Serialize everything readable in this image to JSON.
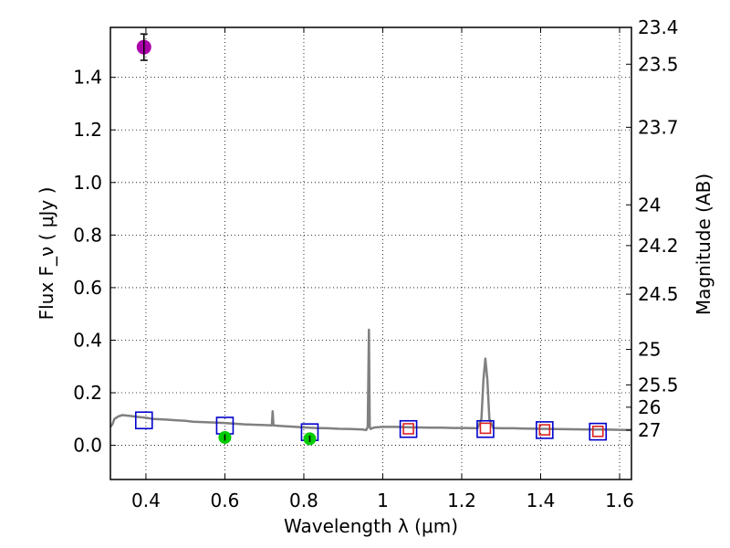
{
  "chart_data": {
    "type": "scatter",
    "xlabel": "Wavelength  λ (μm)",
    "ylabel": "Flux  F_ν  ( μJy )",
    "ylabel_right": "Magnitude (AB)",
    "xlim": [
      0.31,
      1.63
    ],
    "ylim": [
      -0.13,
      1.59
    ],
    "grid": true,
    "x_ticks": [
      0.4,
      0.6,
      0.8,
      1.0,
      1.2,
      1.4,
      1.6
    ],
    "x_tick_labels": [
      "0.4",
      "0.6",
      "0.8",
      "1",
      "1.2",
      "1.4",
      "1.6"
    ],
    "y_ticks": [
      0.0,
      0.2,
      0.4,
      0.6,
      0.8,
      1.0,
      1.2,
      1.4
    ],
    "y_tick_labels": [
      "0.0",
      "0.2",
      "0.4",
      "0.6",
      "0.8",
      "1.0",
      "1.2",
      "1.4"
    ],
    "right_ticks": [
      {
        "label": "23.4",
        "flux": 1.59
      },
      {
        "label": "23.5",
        "flux": 1.45
      },
      {
        "label": "23.7",
        "flux": 1.21
      },
      {
        "label": "24",
        "flux": 0.915
      },
      {
        "label": "24.2",
        "flux": 0.76
      },
      {
        "label": "24.5",
        "flux": 0.575
      },
      {
        "label": "25",
        "flux": 0.365
      },
      {
        "label": "25.5",
        "flux": 0.23
      },
      {
        "label": "26",
        "flux": 0.145
      },
      {
        "label": "27",
        "flux": 0.058
      }
    ],
    "model_spectrum": {
      "color": "#808080",
      "x": [
        0.31,
        0.315,
        0.32,
        0.33,
        0.34,
        0.36,
        0.38,
        0.4,
        0.42,
        0.45,
        0.48,
        0.5,
        0.52,
        0.55,
        0.58,
        0.6,
        0.62,
        0.65,
        0.68,
        0.7,
        0.719,
        0.721,
        0.723,
        0.73,
        0.75,
        0.78,
        0.8,
        0.83,
        0.86,
        0.89,
        0.92,
        0.95,
        0.958,
        0.962,
        0.965,
        0.967,
        0.969,
        0.972,
        0.98,
        1.0,
        1.03,
        1.06,
        1.09,
        1.12,
        1.15,
        1.18,
        1.21,
        1.24,
        1.25,
        1.255,
        1.26,
        1.265,
        1.27,
        1.28,
        1.3,
        1.33,
        1.36,
        1.4,
        1.44,
        1.48,
        1.52,
        1.56,
        1.6,
        1.63
      ],
      "y": [
        0.07,
        0.08,
        0.1,
        0.11,
        0.115,
        0.112,
        0.108,
        0.105,
        0.1,
        0.098,
        0.095,
        0.093,
        0.09,
        0.088,
        0.086,
        0.085,
        0.083,
        0.08,
        0.078,
        0.077,
        0.076,
        0.13,
        0.076,
        0.075,
        0.073,
        0.07,
        0.068,
        0.066,
        0.065,
        0.063,
        0.062,
        0.06,
        0.058,
        0.07,
        0.44,
        0.07,
        0.062,
        0.065,
        0.068,
        0.07,
        0.07,
        0.069,
        0.068,
        0.067,
        0.067,
        0.066,
        0.066,
        0.065,
        0.1,
        0.25,
        0.33,
        0.25,
        0.1,
        0.066,
        0.065,
        0.065,
        0.064,
        0.063,
        0.062,
        0.061,
        0.06,
        0.06,
        0.059,
        0.058
      ]
    },
    "series": [
      {
        "name": "model_photometry",
        "marker": "square",
        "color": "#0000cc",
        "points": [
          {
            "x": 0.395,
            "y": 0.095
          },
          {
            "x": 0.6,
            "y": 0.075
          },
          {
            "x": 0.815,
            "y": 0.05
          },
          {
            "x": 1.065,
            "y": 0.062
          },
          {
            "x": 1.26,
            "y": 0.062
          },
          {
            "x": 1.41,
            "y": 0.058
          },
          {
            "x": 1.545,
            "y": 0.052
          }
        ]
      },
      {
        "name": "upper_limit_photometry",
        "marker": "square",
        "color": "#dd2222",
        "points": [
          {
            "x": 1.065,
            "y": 0.063
          },
          {
            "x": 1.26,
            "y": 0.065
          },
          {
            "x": 1.41,
            "y": 0.059
          },
          {
            "x": 1.545,
            "y": 0.053
          }
        ]
      },
      {
        "name": "detection_green",
        "marker": "circle",
        "color": "#00cc00",
        "points": [
          {
            "x": 0.6,
            "y": 0.03,
            "err": 0.012
          },
          {
            "x": 0.815,
            "y": 0.025,
            "err": 0.012
          }
        ]
      },
      {
        "name": "detection_magenta",
        "marker": "circle",
        "color": "#aa00aa",
        "points": [
          {
            "x": 0.395,
            "y": 1.515,
            "err": 0.05
          }
        ]
      }
    ]
  }
}
